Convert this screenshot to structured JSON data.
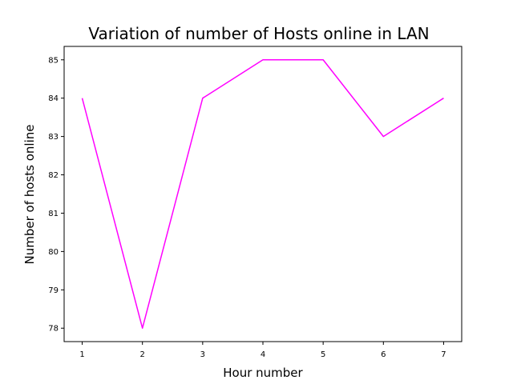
{
  "chart_data": {
    "type": "line",
    "title": "Variation of number of Hosts online in LAN",
    "xlabel": "Hour number",
    "ylabel": "Number of hosts online",
    "x": [
      1,
      2,
      3,
      4,
      5,
      6,
      7
    ],
    "series": [
      {
        "values": [
          84,
          78,
          84,
          85,
          85,
          83,
          84
        ],
        "color": "#ff00ff"
      }
    ],
    "xticks": [
      1,
      2,
      3,
      4,
      5,
      6,
      7
    ],
    "yticks": [
      78,
      79,
      80,
      81,
      82,
      83,
      84,
      85
    ],
    "xlim": [
      0.7,
      7.3
    ],
    "ylim": [
      77.65,
      85.35
    ],
    "grid": false,
    "legend": "none"
  }
}
